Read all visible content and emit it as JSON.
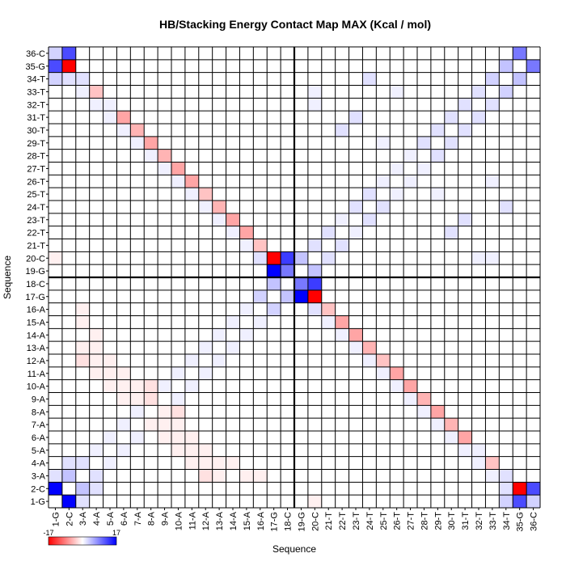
{
  "chart_data": {
    "type": "heatmap",
    "title": "HB/Stacking Energy Contact Map MAX (Kcal / mol)",
    "xlabel": "Sequence",
    "ylabel": "Sequence",
    "labels": [
      "1-G",
      "2-C",
      "3-A",
      "4-A",
      "5-A",
      "6-A",
      "7-A",
      "8-A",
      "9-A",
      "10-A",
      "11-A",
      "12-A",
      "13-A",
      "14-A",
      "15-A",
      "16-A",
      "17-G",
      "18-C",
      "19-G",
      "20-C",
      "21-T",
      "22-T",
      "23-T",
      "24-T",
      "25-T",
      "26-T",
      "27-T",
      "28-T",
      "29-T",
      "30-T",
      "31-T",
      "32-T",
      "33-T",
      "34-T",
      "35-G",
      "36-C"
    ],
    "colorbar": {
      "min": -17,
      "max": 17,
      "min_label": "-17",
      "max_label": "17",
      "low_color": "#ff0000",
      "mid_color": "#ffffff",
      "high_color": "#0000ff"
    },
    "separators_after": [
      18
    ],
    "cells": [
      [
        1,
        2,
        17
      ],
      [
        1,
        35,
        12
      ],
      [
        1,
        36,
        3
      ],
      [
        1,
        3,
        2
      ],
      [
        1,
        34,
        3
      ],
      [
        2,
        3,
        4
      ],
      [
        2,
        36,
        12
      ],
      [
        2,
        35,
        -17
      ],
      [
        2,
        4,
        2
      ],
      [
        2,
        34,
        2
      ],
      [
        3,
        4,
        2
      ],
      [
        3,
        34,
        2
      ],
      [
        3,
        33,
        1
      ],
      [
        4,
        5,
        1
      ],
      [
        4,
        33,
        -4
      ],
      [
        4,
        32,
        1
      ],
      [
        5,
        6,
        1
      ],
      [
        5,
        32,
        1
      ],
      [
        5,
        31,
        1
      ],
      [
        6,
        7,
        1
      ],
      [
        6,
        31,
        -6
      ],
      [
        6,
        30,
        1
      ],
      [
        7,
        8,
        1
      ],
      [
        7,
        30,
        -5
      ],
      [
        7,
        29,
        1
      ],
      [
        8,
        9,
        1
      ],
      [
        8,
        29,
        -6
      ],
      [
        8,
        28,
        1
      ],
      [
        9,
        10,
        1
      ],
      [
        9,
        28,
        -5
      ],
      [
        9,
        27,
        1
      ],
      [
        10,
        11,
        1
      ],
      [
        10,
        27,
        -6
      ],
      [
        10,
        26,
        1
      ],
      [
        11,
        12,
        1
      ],
      [
        11,
        26,
        -6
      ],
      [
        11,
        25,
        1
      ],
      [
        12,
        13,
        1
      ],
      [
        12,
        25,
        -4
      ],
      [
        12,
        24,
        1
      ],
      [
        13,
        14,
        1
      ],
      [
        13,
        24,
        -5
      ],
      [
        13,
        23,
        1
      ],
      [
        14,
        15,
        1
      ],
      [
        14,
        23,
        -6
      ],
      [
        14,
        22,
        1
      ],
      [
        15,
        16,
        1
      ],
      [
        15,
        22,
        -6
      ],
      [
        15,
        21,
        1
      ],
      [
        16,
        17,
        3
      ],
      [
        16,
        21,
        -4
      ],
      [
        16,
        20,
        2
      ],
      [
        17,
        18,
        4
      ],
      [
        17,
        20,
        -17
      ],
      [
        17,
        19,
        17
      ],
      [
        18,
        19,
        9
      ],
      [
        18,
        20,
        13
      ],
      [
        19,
        20,
        4
      ],
      [
        20,
        21,
        2
      ],
      [
        21,
        22,
        2
      ],
      [
        22,
        23,
        1
      ],
      [
        23,
        24,
        2
      ],
      [
        24,
        25,
        2
      ],
      [
        25,
        26,
        1
      ],
      [
        26,
        27,
        1
      ],
      [
        27,
        28,
        1
      ],
      [
        28,
        29,
        2
      ],
      [
        29,
        30,
        2
      ],
      [
        30,
        31,
        2
      ],
      [
        31,
        32,
        2
      ],
      [
        32,
        33,
        2
      ],
      [
        33,
        34,
        3
      ],
      [
        34,
        35,
        4
      ],
      [
        35,
        36,
        9
      ],
      [
        20,
        33,
        1
      ],
      [
        20,
        32,
        1
      ],
      [
        22,
        30,
        2
      ],
      [
        23,
        31,
        2
      ],
      [
        24,
        34,
        2
      ],
      [
        25,
        29,
        1
      ],
      [
        26,
        33,
        1
      ],
      [
        3,
        12,
        -2
      ],
      [
        3,
        13,
        -1
      ],
      [
        4,
        11,
        -1
      ],
      [
        4,
        12,
        -1
      ],
      [
        5,
        10,
        -1
      ],
      [
        5,
        11,
        -1
      ],
      [
        6,
        9,
        -1
      ],
      [
        7,
        8,
        -1
      ],
      [
        8,
        9,
        -1
      ],
      [
        8,
        10,
        -2
      ],
      [
        9,
        8,
        -2
      ],
      [
        9,
        7,
        -1
      ],
      [
        10,
        6,
        -1
      ],
      [
        10,
        7,
        -1
      ],
      [
        11,
        6,
        -1
      ],
      [
        12,
        5,
        -1
      ],
      [
        13,
        4,
        -1
      ],
      [
        14,
        4,
        -1
      ],
      [
        15,
        3,
        -1
      ],
      [
        16,
        3,
        -1
      ],
      [
        20,
        1,
        -1
      ]
    ]
  }
}
